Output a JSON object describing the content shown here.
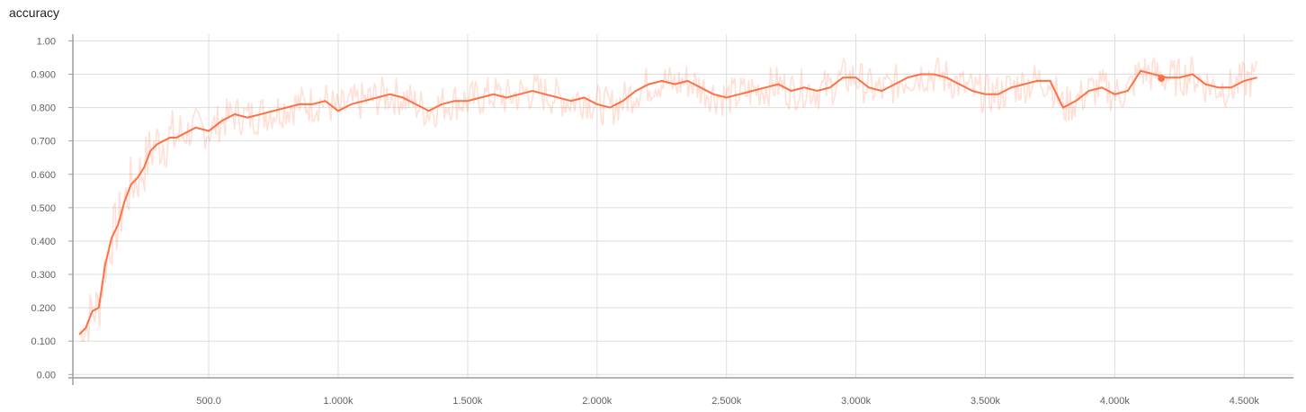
{
  "chart_data": {
    "type": "line",
    "title": "accuracy",
    "xlabel": "",
    "ylabel": "",
    "xlim": [
      -25,
      4690
    ],
    "ylim": [
      -0.01,
      1.02
    ],
    "grid": true,
    "y_ticks": [
      0.0,
      0.1,
      0.2,
      0.3,
      0.4,
      0.5,
      0.6,
      0.7,
      0.8,
      0.9,
      1.0
    ],
    "y_tick_labels": [
      "0.00",
      "0.100",
      "0.200",
      "0.300",
      "0.400",
      "0.500",
      "0.600",
      "0.700",
      "0.800",
      "0.900",
      "1.00"
    ],
    "x_ticks": [
      500,
      1000,
      1500,
      2000,
      2500,
      3000,
      3500,
      4000,
      4500
    ],
    "x_tick_labels": [
      "500.0",
      "1.000k",
      "1.500k",
      "2.000k",
      "2.500k",
      "3.000k",
      "3.500k",
      "4.000k",
      "4.500k"
    ],
    "colors": {
      "smoothed": "#ff7043",
      "raw": "#ff7043",
      "grid": "#dddddd",
      "axis": "#9e9e9e"
    },
    "series": [
      {
        "x": [
          0,
          25,
          50,
          75,
          100,
          125,
          150,
          175,
          200,
          225,
          250,
          275,
          300,
          325,
          350,
          375,
          400,
          450,
          500,
          550,
          600,
          650,
          700,
          750,
          800,
          850,
          900,
          950,
          1000,
          1050,
          1100,
          1150,
          1200,
          1250,
          1300,
          1350,
          1400,
          1450,
          1500,
          1550,
          1600,
          1650,
          1700,
          1750,
          1800,
          1850,
          1900,
          1950,
          2000,
          2050,
          2100,
          2150,
          2200,
          2250,
          2300,
          2350,
          2400,
          2450,
          2500,
          2550,
          2600,
          2650,
          2700,
          2750,
          2800,
          2850,
          2900,
          2950,
          3000,
          3050,
          3100,
          3150,
          3200,
          3250,
          3300,
          3350,
          3400,
          3450,
          3500,
          3550,
          3600,
          3650,
          3700,
          3750,
          3800,
          3850,
          3900,
          3950,
          4000,
          4050,
          4100,
          4150,
          4200,
          4250,
          4300,
          4350,
          4400,
          4450,
          4500,
          4550
        ],
        "y": [
          0.12,
          0.14,
          0.19,
          0.2,
          0.33,
          0.41,
          0.45,
          0.52,
          0.57,
          0.59,
          0.62,
          0.67,
          0.69,
          0.7,
          0.71,
          0.71,
          0.72,
          0.74,
          0.73,
          0.76,
          0.78,
          0.77,
          0.78,
          0.79,
          0.8,
          0.81,
          0.81,
          0.82,
          0.79,
          0.81,
          0.82,
          0.83,
          0.84,
          0.83,
          0.81,
          0.79,
          0.81,
          0.82,
          0.82,
          0.83,
          0.84,
          0.83,
          0.84,
          0.85,
          0.84,
          0.83,
          0.82,
          0.83,
          0.81,
          0.8,
          0.82,
          0.85,
          0.87,
          0.88,
          0.87,
          0.88,
          0.86,
          0.84,
          0.83,
          0.84,
          0.85,
          0.86,
          0.87,
          0.85,
          0.86,
          0.85,
          0.86,
          0.89,
          0.89,
          0.86,
          0.85,
          0.87,
          0.89,
          0.9,
          0.9,
          0.89,
          0.87,
          0.85,
          0.84,
          0.84,
          0.86,
          0.87,
          0.88,
          0.88,
          0.8,
          0.82,
          0.85,
          0.86,
          0.84,
          0.85,
          0.91,
          0.9,
          0.89,
          0.89,
          0.9,
          0.87,
          0.86,
          0.86,
          0.88,
          0.89
        ]
      }
    ],
    "highlight_point": {
      "x": 4180,
      "y": 0.888
    }
  }
}
